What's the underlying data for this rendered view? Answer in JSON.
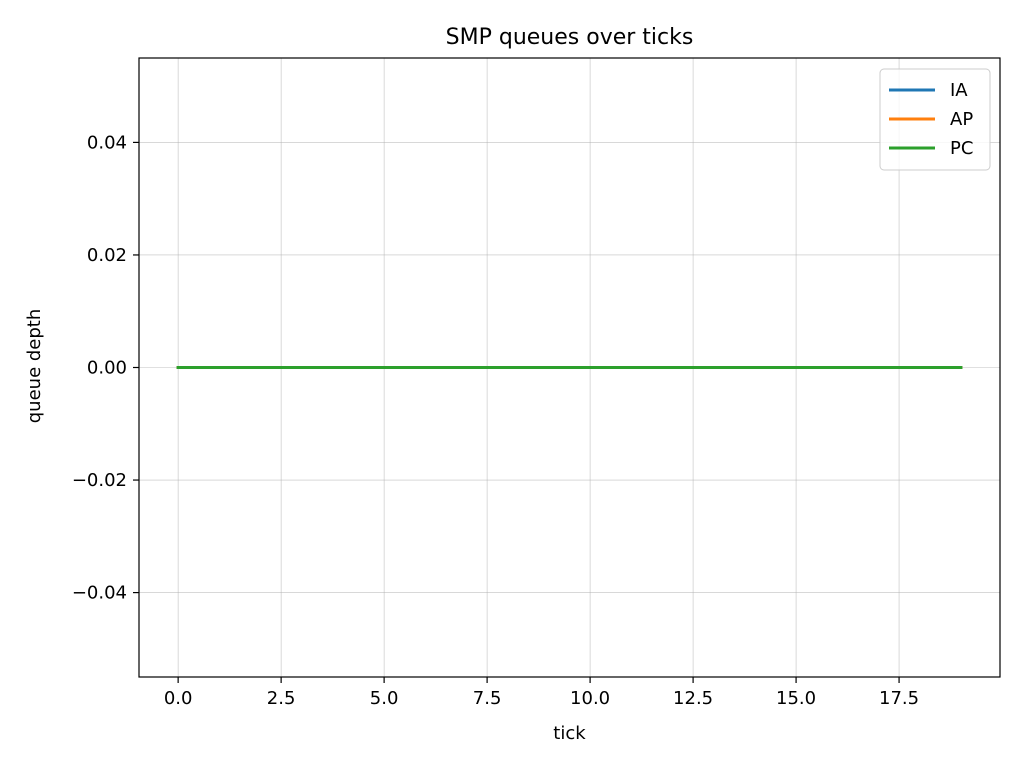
{
  "chart_data": {
    "type": "line",
    "title": "SMP queues over ticks",
    "xlabel": "tick",
    "ylabel": "queue depth",
    "xlim": [
      -0.95,
      19.95
    ],
    "ylim": [
      -0.055,
      0.055
    ],
    "xticks": [
      0.0,
      2.5,
      5.0,
      7.5,
      10.0,
      12.5,
      15.0,
      17.5
    ],
    "xtick_labels": [
      "0.0",
      "2.5",
      "5.0",
      "7.5",
      "10.0",
      "12.5",
      "15.0",
      "17.5"
    ],
    "yticks": [
      -0.04,
      -0.02,
      0.0,
      0.02,
      0.04
    ],
    "ytick_labels": [
      "−0.04",
      "−0.02",
      "0.00",
      "0.02",
      "0.04"
    ],
    "grid": true,
    "legend_position": "top-right",
    "x": [
      0,
      1,
      2,
      3,
      4,
      5,
      6,
      7,
      8,
      9,
      10,
      11,
      12,
      13,
      14,
      15,
      16,
      17,
      18,
      19
    ],
    "series": [
      {
        "name": "IA",
        "color": "#1f77b4",
        "values": [
          0,
          0,
          0,
          0,
          0,
          0,
          0,
          0,
          0,
          0,
          0,
          0,
          0,
          0,
          0,
          0,
          0,
          0,
          0,
          0
        ]
      },
      {
        "name": "AP",
        "color": "#ff7f0e",
        "values": [
          0,
          0,
          0,
          0,
          0,
          0,
          0,
          0,
          0,
          0,
          0,
          0,
          0,
          0,
          0,
          0,
          0,
          0,
          0,
          0
        ]
      },
      {
        "name": "PC",
        "color": "#2ca02c",
        "values": [
          0,
          0,
          0,
          0,
          0,
          0,
          0,
          0,
          0,
          0,
          0,
          0,
          0,
          0,
          0,
          0,
          0,
          0,
          0,
          0
        ]
      }
    ]
  }
}
